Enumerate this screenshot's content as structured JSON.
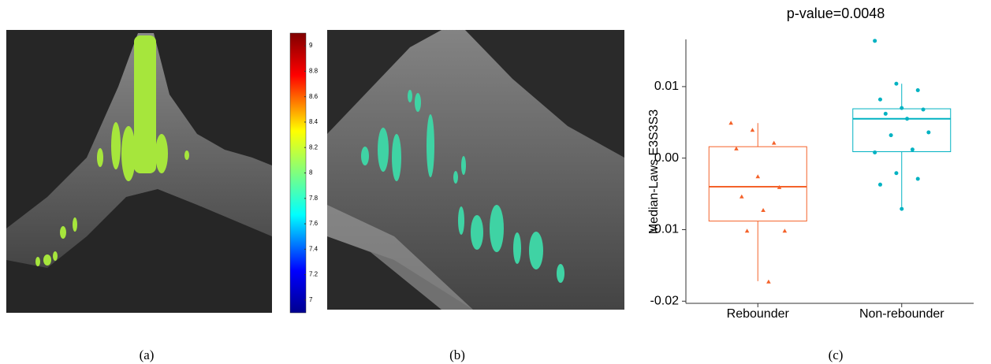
{
  "captions": [
    "(a)",
    "(b)",
    "(c)"
  ],
  "colorbar": {
    "lim": [
      6.9,
      9.1
    ],
    "ticks": [
      7,
      7.2,
      7.4,
      7.6,
      7.8,
      8,
      8.2,
      8.4,
      8.6,
      8.8,
      9
    ]
  },
  "chart_data": {
    "type": "box",
    "title": "p-value=0.0048",
    "y_label": "Median-Laws E3S3S3",
    "categories": [
      "Rebounder",
      "Non-rebounder"
    ],
    "ylim": [
      -0.0203,
      0.0166
    ],
    "yticks": [
      -0.02,
      -0.01,
      {
        "value": 0,
        "label": "0.00"
      },
      0.01
    ],
    "groups": [
      {
        "color": "#f4622a",
        "marker": "triangle",
        "whisker_low": -0.0172,
        "q1": -0.0088,
        "median": -0.004,
        "q3": 0.0016,
        "whisker_high": 0.0049,
        "points": [
          0.0049,
          0.0039,
          0.0021,
          0.0013,
          -0.0026,
          -0.0041,
          -0.0054,
          -0.0073,
          -0.0102,
          -0.0102,
          -0.0173
        ]
      },
      {
        "color": "#00b2c2",
        "marker": "circle",
        "whisker_low": -0.0068,
        "q1": 0.0009,
        "median": 0.0055,
        "q3": 0.0069,
        "whisker_high": 0.0104,
        "points": [
          0.0164,
          0.0104,
          0.0095,
          0.0082,
          0.007,
          0.0068,
          0.0062,
          0.0055,
          0.0036,
          0.0032,
          0.0012,
          0.0008,
          -0.0021,
          -0.0029,
          -0.0037,
          -0.0071
        ]
      }
    ]
  }
}
